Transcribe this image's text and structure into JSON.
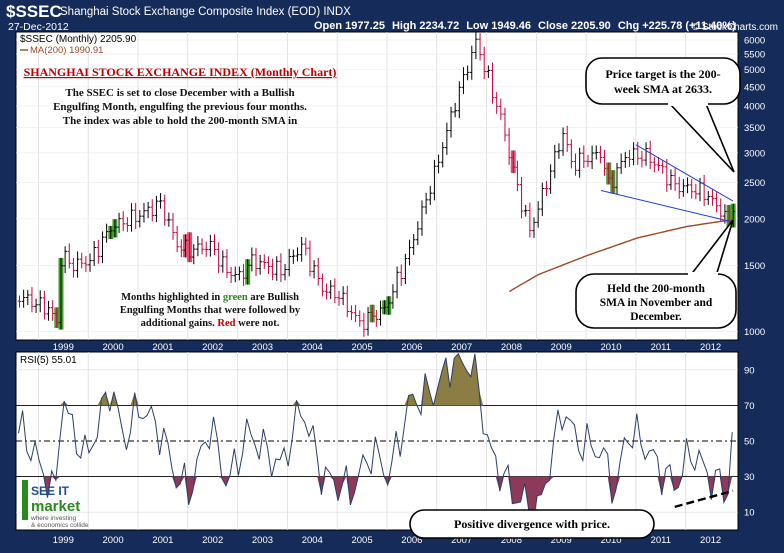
{
  "header": {
    "ticker": "$SSEC",
    "index_name": "Shanghai Stock Exchange Composite Index (EOD) INDX",
    "date": "27-Dec-2012",
    "brand": "© StockCharts.com",
    "ohlc": [
      {
        "label": "Open",
        "value": "1977.25"
      },
      {
        "label": "High",
        "value": "2234.72"
      },
      {
        "label": "Low",
        "value": "1949.46"
      },
      {
        "label": "Close",
        "value": "2205.90"
      },
      {
        "label": "Chg",
        "value": "+225.78 (+11.40%)"
      }
    ]
  },
  "price_panel": {
    "legend_price": "$SSEC (Monthly) 2205.90",
    "legend_ma": "MA(200) 1990.91",
    "chart_title": "SHANGHAI STOCK EXCHANGE INDEX (Monthly Chart)",
    "description_lines": [
      "The SSEC is set to close December with a Bullish",
      "Engulfing Month, engulfing the previous four months.",
      "The index was able to hold the 200-month SMA in"
    ],
    "note_lines": [
      [
        {
          "t": "Months highlighted in ",
          "c": "dark"
        },
        {
          "t": "green",
          "c": "green"
        },
        {
          "t": " are Bullish",
          "c": "dark"
        }
      ],
      [
        {
          "t": "Engulfing Months that were followed by",
          "c": "dark"
        }
      ],
      [
        {
          "t": "additional gains. ",
          "c": "dark"
        },
        {
          "t": "Red",
          "c": "red"
        },
        {
          "t": " were not.",
          "c": "dark"
        }
      ]
    ],
    "callout_target": [
      "Price target is the 200-",
      "week SMA at 2633."
    ],
    "callout_held": [
      "Held the 200-month",
      "SMA in November and",
      "December."
    ],
    "y_ticks": [
      "6000",
      "5500",
      "5000",
      "4500",
      "4000",
      "3500",
      "3000",
      "2500",
      "2000",
      "1500",
      "1000"
    ],
    "x_labels": [
      "1999",
      "2000",
      "2001",
      "2002",
      "2003",
      "2004",
      "2005",
      "2006",
      "2007",
      "2008",
      "2009",
      "2010",
      "2011",
      "2012"
    ]
  },
  "rsi_panel": {
    "legend": "RSI(5) 55.01",
    "y_ticks": [
      "90",
      "70",
      "50",
      "30",
      "10"
    ],
    "callout_divergence": "Positive divergence with price."
  },
  "logo": {
    "line1": "SEE IT",
    "line2": "market",
    "line3": "where investing",
    "line4": "& economics collide"
  },
  "chart_data": {
    "type": "bar",
    "title": "SHANGHAI STOCK EXCHANGE INDEX (Monthly Chart)",
    "y_scale": "log",
    "ylim": [
      950,
      6300
    ],
    "series": [
      {
        "name": "$SSEC (Monthly)",
        "points": [
          [
            "1998-09",
            1230
          ],
          [
            "1999-03",
            1150
          ],
          [
            "1999-05",
            1050
          ],
          [
            "1999-06",
            1600
          ],
          [
            "1999-09",
            1500
          ],
          [
            "2000-01",
            1550
          ],
          [
            "2000-06",
            1900
          ],
          [
            "2001-01",
            2050
          ],
          [
            "2001-06",
            2200
          ],
          [
            "2001-10",
            1700
          ],
          [
            "2002-01",
            1650
          ],
          [
            "2002-06",
            1700
          ],
          [
            "2002-10",
            1450
          ],
          [
            "2003-01",
            1400
          ],
          [
            "2003-04",
            1550
          ],
          [
            "2003-11",
            1450
          ],
          [
            "2004-04",
            1700
          ],
          [
            "2004-09",
            1300
          ],
          [
            "2005-01",
            1250
          ],
          [
            "2005-06",
            1050
          ],
          [
            "2005-12",
            1150
          ],
          [
            "2006-06",
            1650
          ],
          [
            "2006-12",
            2650
          ],
          [
            "2007-05",
            4100
          ],
          [
            "2007-10",
            5950
          ],
          [
            "2008-04",
            3700
          ],
          [
            "2008-08",
            2400
          ],
          [
            "2008-11",
            1850
          ],
          [
            "2009-07",
            3400
          ],
          [
            "2009-09",
            2800
          ],
          [
            "2010-04",
            3000
          ],
          [
            "2010-06",
            2450
          ],
          [
            "2010-10",
            2950
          ],
          [
            "2011-03",
            2950
          ],
          [
            "2011-06",
            2750
          ],
          [
            "2011-10",
            2450
          ],
          [
            "2012-02",
            2400
          ],
          [
            "2012-05",
            2350
          ],
          [
            "2012-09",
            2100
          ],
          [
            "2012-11",
            1950
          ],
          [
            "2012-12",
            2205.9
          ]
        ]
      },
      {
        "name": "MA(200)",
        "points": [
          [
            "2008-06",
            1280
          ],
          [
            "2009-01",
            1420
          ],
          [
            "2010-01",
            1600
          ],
          [
            "2011-01",
            1780
          ],
          [
            "2012-01",
            1910
          ],
          [
            "2012-12",
            1990.91
          ]
        ]
      }
    ],
    "rsi": {
      "name": "RSI(5)",
      "ylim": [
        0,
        100
      ],
      "last": 55.01,
      "points": [
        [
          "1998-09",
          55
        ],
        [
          "1999-01",
          35
        ],
        [
          "1999-05",
          20
        ],
        [
          "1999-06",
          80
        ],
        [
          "1999-08",
          60
        ],
        [
          "1999-12",
          40
        ],
        [
          "2000-03",
          60
        ],
        [
          "2000-06",
          82
        ],
        [
          "2000-09",
          50
        ],
        [
          "2001-01",
          70
        ],
        [
          "2001-06",
          55
        ],
        [
          "2001-10",
          28
        ],
        [
          "2002-01",
          22
        ],
        [
          "2002-06",
          60
        ],
        [
          "2002-10",
          25
        ],
        [
          "2003-03",
          55
        ],
        [
          "2003-11",
          35
        ],
        [
          "2004-04",
          70
        ],
        [
          "2004-09",
          30
        ],
        [
          "2005-04",
          22
        ],
        [
          "2005-09",
          45
        ],
        [
          "2006-01",
          30
        ],
        [
          "2006-06",
          72
        ],
        [
          "2006-12",
          78
        ],
        [
          "2007-05",
          98
        ],
        [
          "2007-10",
          90
        ],
        [
          "2008-01",
          45
        ],
        [
          "2008-07",
          20
        ],
        [
          "2009-01",
          10
        ],
        [
          "2009-07",
          70
        ],
        [
          "2009-10",
          50
        ],
        [
          "2010-04",
          45
        ],
        [
          "2010-08",
          20
        ],
        [
          "2010-10",
          55
        ],
        [
          "2011-02",
          50
        ],
        [
          "2011-06",
          35
        ],
        [
          "2011-10",
          25
        ],
        [
          "2012-02",
          45
        ],
        [
          "2012-06",
          30
        ],
        [
          "2012-11",
          22
        ],
        [
          "2012-12",
          55.01
        ]
      ]
    }
  }
}
